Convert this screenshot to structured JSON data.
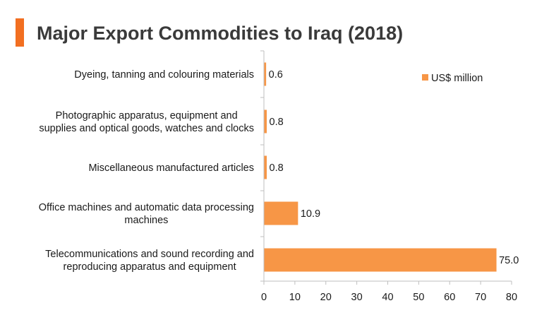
{
  "colors": {
    "accent": "#F79646",
    "title_bar": "#F26F21",
    "axis": "#BFBFBF"
  },
  "title": "Major Export Commodities to Iraq (2018)",
  "chart_data": {
    "type": "bar",
    "orientation": "horizontal",
    "title": "Major Export Commodities to Iraq (2018)",
    "categories": [
      [
        "Dyeing, tanning and colouring materials"
      ],
      [
        "Photographic apparatus, equipment and",
        "supplies and optical goods, watches and clocks"
      ],
      [
        "Miscellaneous manufactured articles"
      ],
      [
        "Office machines and automatic data processing",
        "machines"
      ],
      [
        "Telecommunications and sound recording and",
        "reproducing apparatus and equipment"
      ]
    ],
    "series": [
      {
        "name": "US$ million",
        "values": [
          0.6,
          0.8,
          0.8,
          10.9,
          75.0
        ],
        "labels": [
          "0.6",
          "0.8",
          "0.8",
          "10.9",
          "75.0"
        ]
      }
    ],
    "xlim": [
      0,
      80
    ],
    "xticks": [
      "0",
      "10",
      "20",
      "30",
      "40",
      "50",
      "60",
      "70",
      "80"
    ],
    "grid": false,
    "legend": "top-right"
  }
}
